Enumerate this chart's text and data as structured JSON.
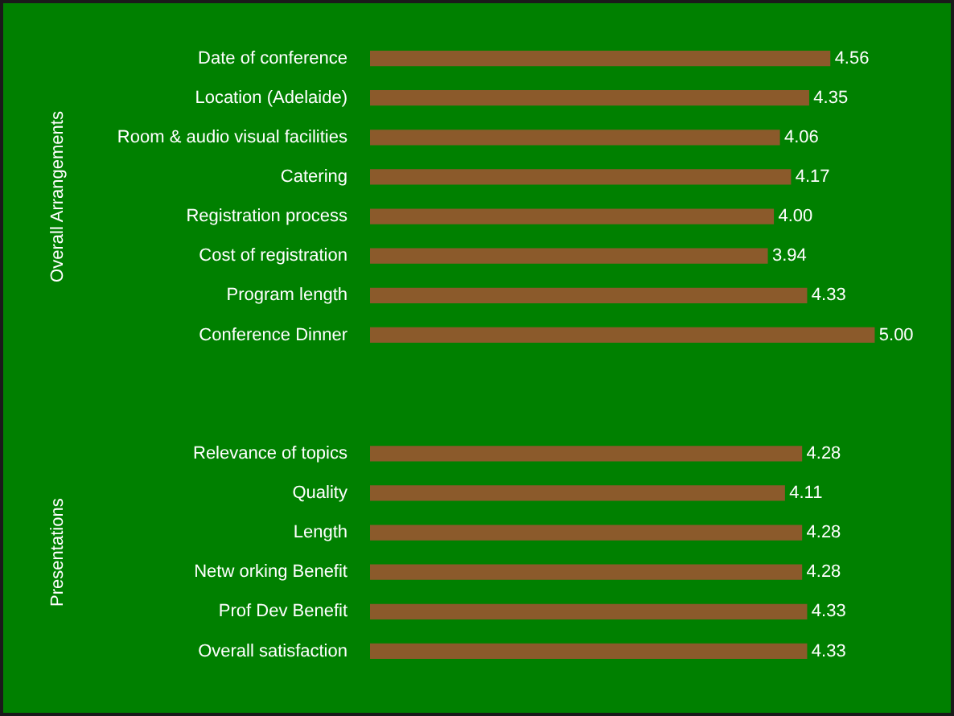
{
  "chart_data": {
    "type": "bar",
    "orientation": "horizontal",
    "legend": false,
    "tick_labels": "y",
    "color": "#8b5a2b",
    "categories": [
      "Date of conference",
      "Location (Adelaide)",
      "Room & audio visual facilities",
      "Catering",
      "Registration process",
      "Cost of registration",
      "Program length",
      "Conference Dinner",
      null,
      null,
      "Relevance of topics",
      "Quality",
      "Length",
      "Netw orking Benefit",
      "Prof Dev Benefit",
      "Overall satisfaction"
    ],
    "values": [
      4.56,
      4.35,
      4.06,
      4.17,
      4.0,
      3.94,
      4.33,
      5.0,
      null,
      null,
      4.28,
      4.11,
      4.28,
      4.28,
      4.33,
      4.33
    ],
    "value_labels": [
      "4.56",
      "4.35",
      "4.06",
      "4.17",
      "4.00",
      "3.94",
      "4.33",
      "5.00",
      null,
      null,
      "4.28",
      "4.11",
      "4.28",
      "4.28",
      "4.33",
      "4.33"
    ],
    "annotations": [
      "Overall Arrangements",
      "Presentations"
    ]
  }
}
